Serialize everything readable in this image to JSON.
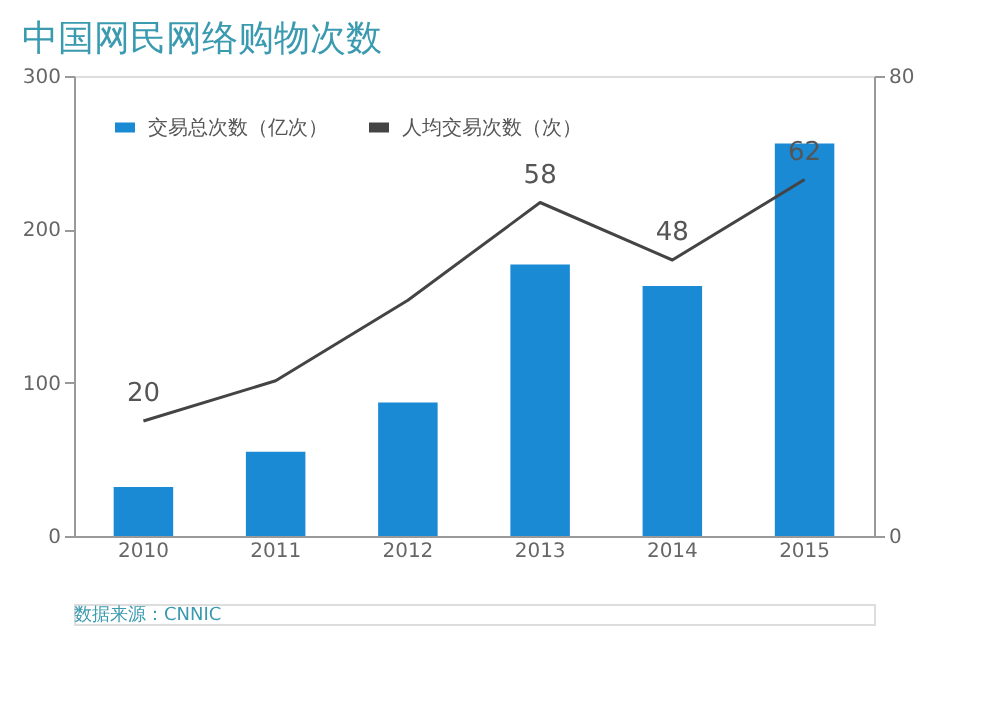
{
  "chart_data": {
    "type": "bar",
    "title": "中国网民网络购物次数",
    "categories": [
      "2010",
      "2011",
      "2012",
      "2013",
      "2014",
      "2015"
    ],
    "series": [
      {
        "name": "交易总次数（亿次）",
        "color": "#1a8ad4",
        "values": [
          32,
          55,
          87,
          177,
          163,
          256
        ]
      },
      {
        "name": "人均交易次数（次）",
        "type": "line",
        "axis": "y2",
        "color": "#444444",
        "values": [
          20,
          27,
          41,
          58,
          48,
          62
        ],
        "value_labels": [
          "20",
          null,
          null,
          "58",
          "48",
          "62"
        ]
      }
    ],
    "ylim": [
      0,
      300
    ],
    "yticks": [
      0,
      100,
      200,
      300
    ],
    "y2lim": [
      0,
      80
    ],
    "y2ticks": [
      0,
      80
    ],
    "legend": "top left",
    "grid": false,
    "annotations": [
      "数据来源：CNNIC"
    ]
  }
}
